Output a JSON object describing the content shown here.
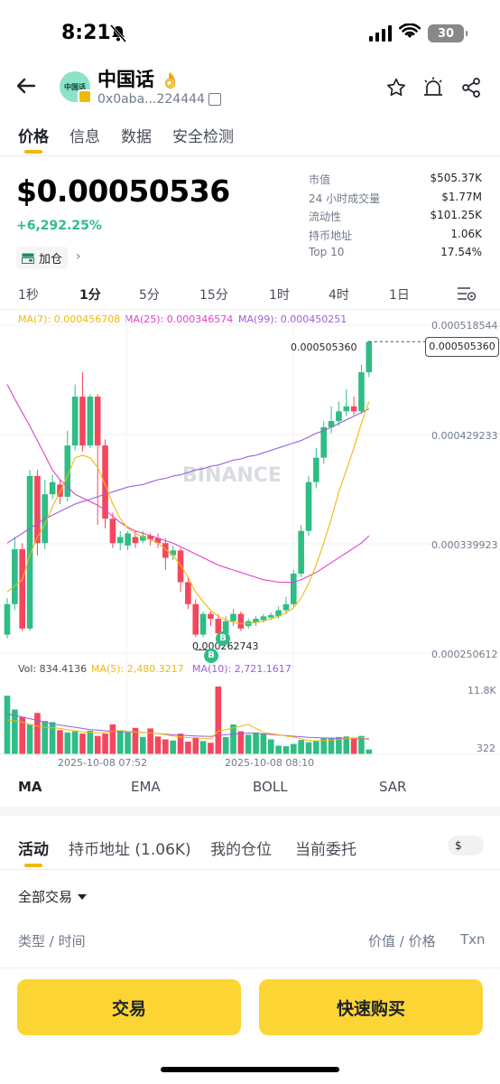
{
  "status_bar": {
    "time": "8:21",
    "battery": "30"
  },
  "header": {
    "token_name": "中国话",
    "token_emoji": "👌",
    "avatar_text": "中国话",
    "address": "0x0aba...224444"
  },
  "tabs": [
    "价格",
    "信息",
    "数据",
    "安全检测"
  ],
  "price": {
    "value": "$0.00050536",
    "change": "+6,292.25%",
    "add_position": "加仓"
  },
  "stats": [
    {
      "label": "市值",
      "value": "$505.37K"
    },
    {
      "label": "24 小时成交量",
      "value": "$1.77M"
    },
    {
      "label": "流动性",
      "value": "$101.25K"
    },
    {
      "label": "持币地址",
      "value": "1.06K"
    },
    {
      "label": "Top 10",
      "value": "17.54%"
    }
  ],
  "intervals": [
    "1秒",
    "1分",
    "5分",
    "15分",
    "1时",
    "4时",
    "1日"
  ],
  "chart": {
    "ma_legend": {
      "ma7": "MA(7): 0.000456708",
      "ma25": "MA(25): 0.000346574",
      "ma99": "MA(99): 0.000450251"
    },
    "y_labels": [
      "0.000518544",
      "0.000429233",
      "0.000339923",
      "0.000250612"
    ],
    "current_price_tag": "0.000505360",
    "high_label": "0.000505360",
    "low_label": "0.000262743",
    "watermark": "BINANCE",
    "buy_marker": "B",
    "vol_legend": {
      "vol": "Vol: 834.4136",
      "ma5": "MA(5): 2,480.3217",
      "ma10": "MA(10): 2,721.1617"
    },
    "vol_y_labels": [
      "11.8K",
      "322"
    ],
    "time_labels": [
      "2025-10-08 07:52",
      "2025-10-08 08:10"
    ],
    "colors": {
      "up": "#2ebd85",
      "down": "#f6465d",
      "ma7": "#f0b90b",
      "ma25": "#e040c8",
      "ma99": "#9a5fd6"
    }
  },
  "chart_data": {
    "type": "candlestick",
    "y_range": [
      0.000250612,
      0.000518544
    ],
    "candles": [
      {
        "o": 0.000265,
        "c": 0.00029,
        "h": 0.000295,
        "l": 0.000262,
        "up": true
      },
      {
        "o": 0.00029,
        "c": 0.000335,
        "h": 0.000345,
        "l": 0.000285,
        "up": true
      },
      {
        "o": 0.000335,
        "c": 0.00027,
        "h": 0.00034,
        "l": 0.000268,
        "up": false
      },
      {
        "o": 0.00027,
        "c": 0.000395,
        "h": 0.0004,
        "l": 0.000268,
        "up": true
      },
      {
        "o": 0.000395,
        "c": 0.00034,
        "h": 0.0004,
        "l": 0.00033,
        "up": false
      },
      {
        "o": 0.00034,
        "c": 0.00038,
        "h": 0.000392,
        "l": 0.000335,
        "up": true
      },
      {
        "o": 0.00038,
        "c": 0.00039,
        "h": 0.000396,
        "l": 0.000376,
        "up": true
      },
      {
        "o": 0.000388,
        "c": 0.000378,
        "h": 0.000392,
        "l": 0.000372,
        "up": false
      },
      {
        "o": 0.000378,
        "c": 0.00042,
        "h": 0.000432,
        "l": 0.000374,
        "up": true
      },
      {
        "o": 0.00042,
        "c": 0.00046,
        "h": 0.00047,
        "l": 0.000416,
        "up": true
      },
      {
        "o": 0.00046,
        "c": 0.00042,
        "h": 0.00048,
        "l": 0.000415,
        "up": false
      },
      {
        "o": 0.00042,
        "c": 0.00046,
        "h": 0.000462,
        "l": 0.000418,
        "up": true
      },
      {
        "o": 0.00046,
        "c": 0.00042,
        "h": 0.000462,
        "l": 0.000355,
        "up": false
      },
      {
        "o": 0.00042,
        "c": 0.00036,
        "h": 0.000425,
        "l": 0.000352,
        "up": false
      },
      {
        "o": 0.00036,
        "c": 0.00034,
        "h": 0.000365,
        "l": 0.000336,
        "up": false
      },
      {
        "o": 0.00034,
        "c": 0.000345,
        "h": 0.00035,
        "l": 0.000334,
        "up": true
      },
      {
        "o": 0.000338,
        "c": 0.000348,
        "h": 0.00035,
        "l": 0.000334,
        "up": true
      },
      {
        "o": 0.000345,
        "c": 0.00034,
        "h": 0.00035,
        "l": 0.000336,
        "up": false
      },
      {
        "o": 0.000342,
        "c": 0.000346,
        "h": 0.00035,
        "l": 0.00034,
        "up": true
      },
      {
        "o": 0.000346,
        "c": 0.000343,
        "h": 0.000348,
        "l": 0.000338,
        "up": false
      },
      {
        "o": 0.000344,
        "c": 0.00034,
        "h": 0.000348,
        "l": 0.000336,
        "up": false
      },
      {
        "o": 0.00034,
        "c": 0.000328,
        "h": 0.000344,
        "l": 0.000318,
        "up": false
      },
      {
        "o": 0.00033,
        "c": 0.000334,
        "h": 0.000338,
        "l": 0.000326,
        "up": true
      },
      {
        "o": 0.000334,
        "c": 0.000308,
        "h": 0.000336,
        "l": 0.0003,
        "up": false
      },
      {
        "o": 0.000308,
        "c": 0.00029,
        "h": 0.000312,
        "l": 0.000286,
        "up": false
      },
      {
        "o": 0.00029,
        "c": 0.000265,
        "h": 0.000294,
        "l": 0.000263,
        "up": false
      },
      {
        "o": 0.000265,
        "c": 0.000282,
        "h": 0.000284,
        "l": 0.000263,
        "up": true
      },
      {
        "o": 0.000282,
        "c": 0.000278,
        "h": 0.000284,
        "l": 0.000272,
        "up": false
      },
      {
        "o": 0.000278,
        "c": 0.000266,
        "h": 0.000282,
        "l": 0.000262,
        "up": false
      },
      {
        "o": 0.000266,
        "c": 0.000276,
        "h": 0.00028,
        "l": 0.000264,
        "up": true
      },
      {
        "o": 0.000276,
        "c": 0.000282,
        "h": 0.000286,
        "l": 0.000272,
        "up": true
      },
      {
        "o": 0.000282,
        "c": 0.00027,
        "h": 0.000284,
        "l": 0.000268,
        "up": false
      },
      {
        "o": 0.000272,
        "c": 0.000276,
        "h": 0.000278,
        "l": 0.00027,
        "up": true
      },
      {
        "o": 0.000275,
        "c": 0.000278,
        "h": 0.00028,
        "l": 0.000272,
        "up": true
      },
      {
        "o": 0.000277,
        "c": 0.00028,
        "h": 0.000282,
        "l": 0.000275,
        "up": true
      },
      {
        "o": 0.000279,
        "c": 0.000281,
        "h": 0.000283,
        "l": 0.000277,
        "up": true
      },
      {
        "o": 0.00028,
        "c": 0.000285,
        "h": 0.000288,
        "l": 0.000278,
        "up": true
      },
      {
        "o": 0.000285,
        "c": 0.00029,
        "h": 0.000296,
        "l": 0.000282,
        "up": true
      },
      {
        "o": 0.00029,
        "c": 0.000315,
        "h": 0.000318,
        "l": 0.000288,
        "up": true
      },
      {
        "o": 0.000315,
        "c": 0.00035,
        "h": 0.000355,
        "l": 0.000312,
        "up": true
      },
      {
        "o": 0.00035,
        "c": 0.00039,
        "h": 0.000395,
        "l": 0.000346,
        "up": true
      },
      {
        "o": 0.00039,
        "c": 0.00041,
        "h": 0.000418,
        "l": 0.000385,
        "up": true
      },
      {
        "o": 0.00041,
        "c": 0.000435,
        "h": 0.00044,
        "l": 0.000405,
        "up": true
      },
      {
        "o": 0.000435,
        "c": 0.00044,
        "h": 0.000452,
        "l": 0.00043,
        "up": true
      },
      {
        "o": 0.00044,
        "c": 0.000448,
        "h": 0.000456,
        "l": 0.000436,
        "up": true
      },
      {
        "o": 0.000448,
        "c": 0.000452,
        "h": 0.000466,
        "l": 0.000444,
        "up": true
      },
      {
        "o": 0.000452,
        "c": 0.000448,
        "h": 0.00046,
        "l": 0.000445,
        "up": false
      },
      {
        "o": 0.000448,
        "c": 0.00048,
        "h": 0.000486,
        "l": 0.000446,
        "up": true
      },
      {
        "o": 0.00048,
        "c": 0.000505,
        "h": 0.000506,
        "l": 0.000476,
        "up": true
      }
    ],
    "ma7": [
      0.0003,
      0.000305,
      0.00031,
      0.00033,
      0.000345,
      0.000355,
      0.00037,
      0.000382,
      0.000395,
      0.00041,
      0.000412,
      0.00041,
      0.000402,
      0.000388,
      0.000372,
      0.00036,
      0.000352,
      0.000348,
      0.000345,
      0.000343,
      0.00034,
      0.000335,
      0.00033,
      0.000322,
      0.000312,
      0.0003,
      0.000292,
      0.000285,
      0.00028,
      0.000277,
      0.000275,
      0.000274,
      0.000274,
      0.000275,
      0.000276,
      0.000278,
      0.00028,
      0.000283,
      0.000287,
      0.000295,
      0.000307,
      0.000322,
      0.00034,
      0.00036,
      0.000382,
      0.0004,
      0.000418,
      0.000438,
      0.000456
    ],
    "ma25": [
      0.00047,
      0.000458,
      0.000447,
      0.000436,
      0.000424,
      0.000412,
      0.0004,
      0.000392,
      0.000386,
      0.00038,
      0.000377,
      0.000374,
      0.000371,
      0.000367,
      0.000362,
      0.000357,
      0.000353,
      0.00035,
      0.000348,
      0.000346,
      0.000344,
      0.000342,
      0.00034,
      0.000337,
      0.000334,
      0.000331,
      0.000328,
      0.000325,
      0.000322,
      0.00032,
      0.000318,
      0.000316,
      0.000314,
      0.000312,
      0.00031,
      0.000309,
      0.000308,
      0.000308,
      0.000308,
      0.00031,
      0.000313,
      0.000316,
      0.00032,
      0.000324,
      0.000328,
      0.000332,
      0.000336,
      0.00034,
      0.000346
    ],
    "ma99": [
      0.00034,
      0.000344,
      0.000348,
      0.000352,
      0.000356,
      0.00036,
      0.000363,
      0.000366,
      0.000369,
      0.000372,
      0.000374,
      0.000376,
      0.000378,
      0.00038,
      0.000382,
      0.000384,
      0.000386,
      0.000387,
      0.000388,
      0.00039,
      0.000392,
      0.000393,
      0.000395,
      0.000396,
      0.000398,
      0.0004,
      0.000401,
      0.000403,
      0.000404,
      0.000406,
      0.000408,
      0.000409,
      0.000411,
      0.000412,
      0.000414,
      0.000416,
      0.000418,
      0.00042,
      0.000422,
      0.000424,
      0.000427,
      0.00043,
      0.000432,
      0.000435,
      0.000438,
      0.000441,
      0.000444,
      0.000447,
      0.00045
    ],
    "volume_range": [
      0,
      11800
    ],
    "volumes": [
      10200,
      7800,
      6500,
      5200,
      7200,
      5800,
      5600,
      4200,
      3800,
      4000,
      3600,
      4100,
      3200,
      3600,
      5200,
      4200,
      3800,
      4600,
      3000,
      4500,
      3100,
      2600,
      2400,
      3600,
      2200,
      2900,
      2300,
      2000,
      11800,
      3000,
      5200,
      4000,
      3400,
      3800,
      3600,
      2600,
      1500,
      1400,
      1800,
      2500,
      2100,
      2400,
      2800,
      2900,
      3000,
      3100,
      2900,
      3200,
      834
    ],
    "vol_up": [
      true,
      true,
      false,
      true,
      false,
      true,
      true,
      false,
      true,
      true,
      false,
      true,
      false,
      false,
      false,
      true,
      true,
      false,
      true,
      false,
      false,
      false,
      true,
      false,
      false,
      false,
      true,
      false,
      false,
      true,
      true,
      false,
      true,
      true,
      true,
      true,
      true,
      true,
      true,
      true,
      true,
      true,
      true,
      true,
      true,
      true,
      false,
      true,
      true
    ],
    "vol_ma5": [
      6000,
      5800,
      5600,
      5200,
      4900,
      4700,
      4600,
      4500,
      4300,
      4100,
      3900,
      3800,
      3700,
      3800,
      4000,
      4100,
      4000,
      3900,
      3800,
      3700,
      3600,
      3400,
      3200,
      3000,
      2900,
      2900,
      2800,
      2700,
      4000,
      4300,
      4600,
      4900,
      5200,
      4500,
      3800,
      3600,
      3400,
      3200,
      3000,
      2700,
      2400,
      2300,
      2400,
      2500,
      2600,
      2700,
      2800,
      2900,
      2480
    ],
    "vol_ma10": [
      7000,
      6800,
      6500,
      6200,
      5900,
      5600,
      5300,
      5100,
      4900,
      4700,
      4500,
      4300,
      4200,
      4100,
      4000,
      3950,
      3900,
      3850,
      3800,
      3700,
      3600,
      3500,
      3400,
      3300,
      3250,
      3200,
      3150,
      3100,
      3300,
      3400,
      3500,
      3600,
      3700,
      3650,
      3550,
      3450,
      3350,
      3250,
      3150,
      3050,
      2950,
      2900,
      2850,
      2800,
      2780,
      2760,
      2740,
      2730,
      2721
    ]
  },
  "indicators": [
    "MA",
    "EMA",
    "BOLL",
    "SAR"
  ],
  "activity_tabs": [
    "活动",
    "持币地址 (1.06K)",
    "我的仓位",
    "当前委托"
  ],
  "currency_symbol": "$",
  "filter": {
    "label": "全部交易"
  },
  "columns": {
    "type_time": "类型 / 时间",
    "value_price": "价值 / 价格",
    "txn": "Txn"
  },
  "buttons": {
    "trade": "交易",
    "quick_buy": "快速购买"
  }
}
